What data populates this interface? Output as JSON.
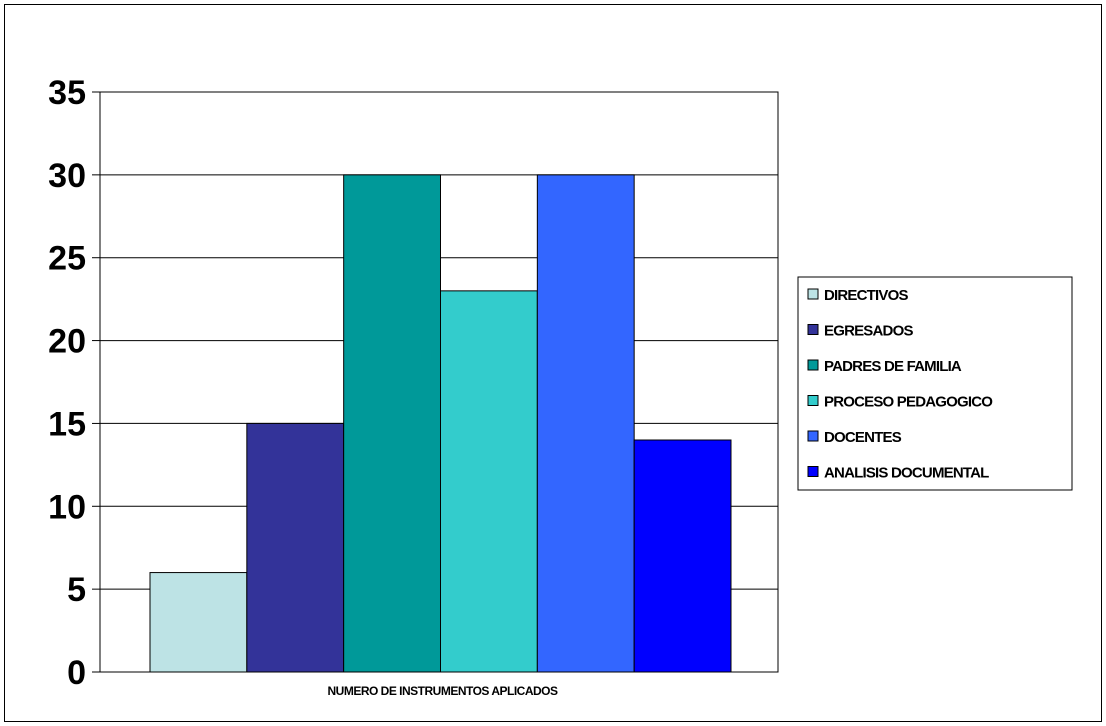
{
  "chart_data": {
    "type": "bar",
    "categories": [
      "NUMERO DE INSTRUMENTOS APLICADOS"
    ],
    "series": [
      {
        "name": "DIRECTIVOS",
        "values": [
          6
        ],
        "color": "#BDE3E5"
      },
      {
        "name": "EGRESADOS",
        "values": [
          15
        ],
        "color": "#333399"
      },
      {
        "name": "PADRES DE FAMILIA",
        "values": [
          30
        ],
        "color": "#009999"
      },
      {
        "name": "PROCESO PEDAGOGICO",
        "values": [
          23
        ],
        "color": "#33CCCC"
      },
      {
        "name": "DOCENTES",
        "values": [
          30
        ],
        "color": "#3366FF"
      },
      {
        "name": "ANALISIS DOCUMENTAL",
        "values": [
          14
        ],
        "color": "#0000FF"
      }
    ],
    "ylim": [
      0,
      35
    ],
    "yticks": [
      "0",
      "5",
      "10",
      "15",
      "20",
      "25",
      "30",
      "35"
    ],
    "grid": true,
    "legend_position": "right"
  }
}
